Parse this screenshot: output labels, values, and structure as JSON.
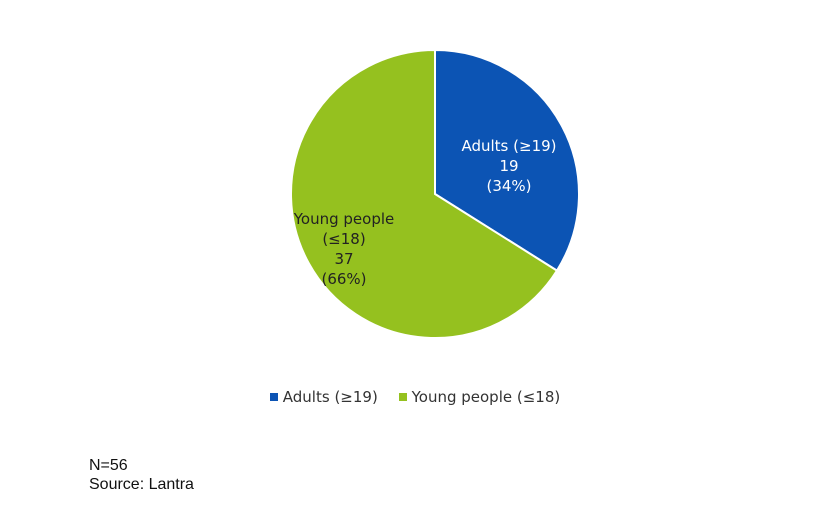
{
  "chart_data": {
    "type": "pie",
    "categories": [
      "Adults (≥19)",
      "Young people (≤18)"
    ],
    "values": [
      19,
      37
    ],
    "percent_labels": [
      "(34%)",
      "(66%)"
    ],
    "colors": [
      "#0c54b4",
      "#95c11f"
    ],
    "slice_label_lines": [
      [
        "Adults (≥19)",
        "19",
        "(34%)"
      ],
      [
        "Young people",
        "(≤18)",
        "37",
        "(66%)"
      ]
    ],
    "legend_position": "bottom"
  },
  "notes": {
    "n": "N=56",
    "source": "Source: Lantra"
  }
}
